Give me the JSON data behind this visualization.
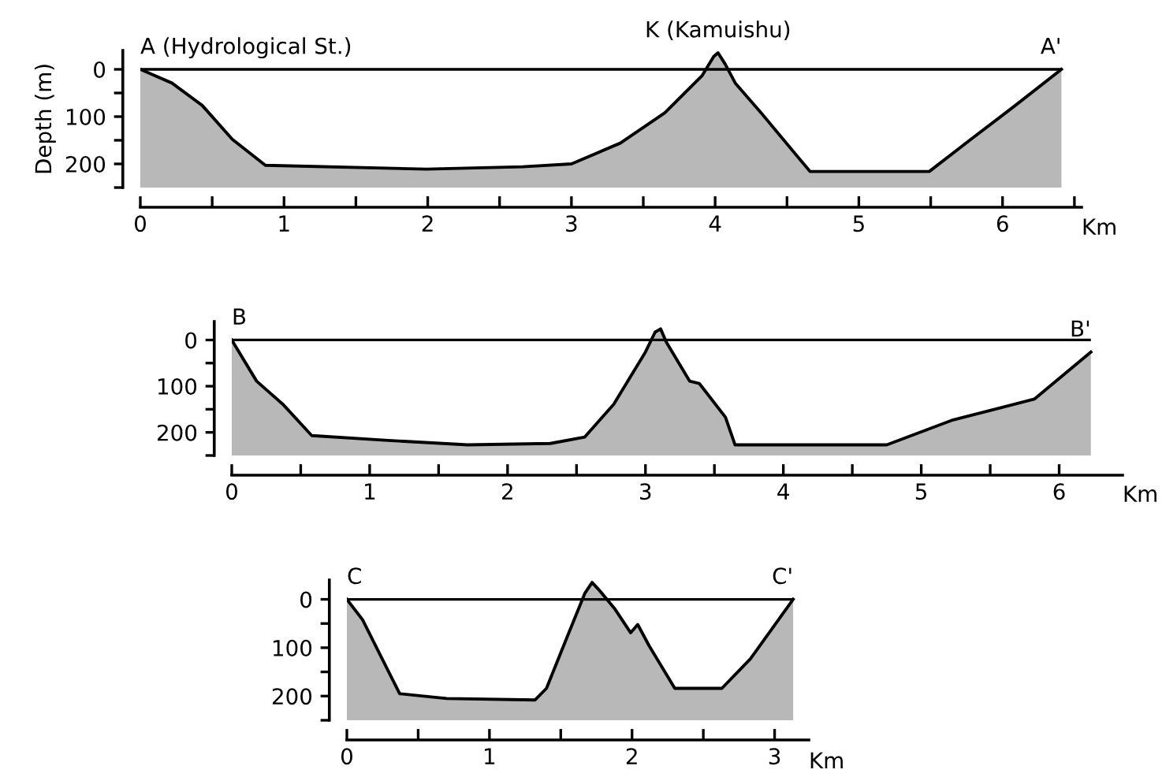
{
  "chart_data": [
    {
      "type": "line",
      "ylabel": "Depth (m)",
      "xlabel": "Km",
      "x": [
        0,
        0.22,
        0.43,
        0.64,
        0.87,
        1.99,
        2.66,
        3.0,
        3.34,
        3.65,
        3.91,
        3.99,
        4.02,
        4.07,
        4.14,
        4.32,
        4.66,
        5.49,
        5.78,
        6.09,
        6.41
      ],
      "series": [
        {
          "color": "#000000",
          "values": [
            0,
            29,
            76,
            148,
            203,
            211,
            206,
            200,
            156,
            92,
            13,
            -27,
            -35,
            -11,
            29,
            92,
            216,
            216,
            148,
            76,
            0
          ],
          "lower": [
            0,
            29,
            76,
            148,
            203,
            211,
            206,
            200,
            156,
            92,
            13,
            -27,
            -35,
            -11,
            29,
            92,
            216,
            216,
            148,
            76,
            0
          ],
          "upper": [
            250,
            250,
            250,
            250,
            250,
            250,
            250,
            250,
            250,
            250,
            250,
            250,
            250,
            250,
            250,
            250,
            250,
            250,
            250,
            250,
            250
          ]
        }
      ],
      "xlim": [
        0,
        6.55
      ],
      "ylim": [
        250,
        -40
      ],
      "xticks": [
        0,
        {
          "value": 0.5,
          "label": null
        },
        1,
        {
          "value": 1.5,
          "label": null
        },
        2,
        {
          "value": 2.5,
          "label": null
        },
        3,
        {
          "value": 3.5,
          "label": null
        },
        4,
        {
          "value": 4.5,
          "label": null
        },
        5,
        {
          "value": 5.5,
          "label": null
        },
        6,
        {
          "value": 6.5,
          "label": null
        }
      ],
      "yticks": [
        0,
        {
          "value": 50,
          "label": null
        },
        100,
        {
          "value": 150,
          "label": null
        },
        200,
        {
          "value": 250,
          "label": null
        }
      ],
      "ref_lines": [
        {
          "axis": "y",
          "value": 0
        }
      ],
      "annotations": [
        {
          "text": "A (Hydrological St.)",
          "x": 0,
          "y": 0
        },
        {
          "text": "K (Kamuishu)",
          "x": 4.02,
          "y": -35
        },
        {
          "text": "A'",
          "x": 6.41,
          "y": 0
        }
      ]
    },
    {
      "type": "line",
      "xlabel": "Km",
      "x": [
        0,
        0.18,
        0.37,
        0.58,
        1.11,
        1.71,
        2.31,
        2.56,
        2.77,
        3.0,
        3.07,
        3.11,
        3.15,
        3.32,
        3.39,
        3.58,
        3.65,
        4.75,
        5.22,
        5.82,
        6.23
      ],
      "series": [
        {
          "color": "#000000",
          "values": [
            0,
            89,
            139,
            207,
            217,
            227,
            224,
            210,
            139,
            26,
            -17,
            -24,
            4,
            89,
            94,
            167,
            227,
            227,
            174,
            128,
            26
          ],
          "lower": [
            0,
            89,
            139,
            207,
            217,
            227,
            224,
            210,
            139,
            26,
            -17,
            -24,
            4,
            89,
            94,
            167,
            227,
            227,
            174,
            128,
            26
          ],
          "upper": [
            250,
            250,
            250,
            250,
            250,
            250,
            250,
            250,
            250,
            250,
            250,
            250,
            250,
            250,
            250,
            250,
            250,
            250,
            250,
            250,
            250
          ]
        }
      ],
      "xlim": [
        0,
        6.46
      ],
      "ylim": [
        250,
        -40
      ],
      "xticks": [
        0,
        {
          "value": 0.5,
          "label": null
        },
        1,
        {
          "value": 1.5,
          "label": null
        },
        2,
        {
          "value": 2.5,
          "label": null
        },
        3,
        {
          "value": 3.5,
          "label": null
        },
        4,
        {
          "value": 4.5,
          "label": null
        },
        5,
        {
          "value": 5.5,
          "label": null
        },
        6
      ],
      "yticks": [
        0,
        {
          "value": 50,
          "label": null
        },
        100,
        {
          "value": 150,
          "label": null
        },
        200,
        {
          "value": 250,
          "label": null
        }
      ],
      "ref_lines": [
        {
          "axis": "y",
          "value": 0
        }
      ],
      "annotations": [
        {
          "text": "B",
          "x": 0,
          "y": 0
        },
        {
          "text": "B'",
          "x": 6.23,
          "y": 26
        }
      ]
    },
    {
      "type": "line",
      "xlabel": "Km",
      "x": [
        0,
        0.11,
        0.22,
        0.37,
        0.7,
        1.32,
        1.4,
        1.55,
        1.67,
        1.72,
        1.77,
        1.88,
        1.99,
        2.04,
        2.12,
        2.3,
        2.63,
        2.83,
        3.13
      ],
      "series": [
        {
          "color": "#000000",
          "values": [
            0,
            42,
            107,
            195,
            205,
            208,
            184,
            74,
            -13,
            -35,
            -19,
            20,
            69,
            52,
            96,
            184,
            184,
            123,
            0
          ],
          "lower": [
            0,
            42,
            107,
            195,
            205,
            208,
            184,
            74,
            -13,
            -35,
            -19,
            20,
            69,
            52,
            96,
            184,
            184,
            123,
            0
          ],
          "upper": [
            250,
            250,
            250,
            250,
            250,
            250,
            250,
            250,
            250,
            250,
            250,
            250,
            250,
            250,
            250,
            250,
            250,
            250,
            250
          ]
        }
      ],
      "xlim": [
        0,
        3.24
      ],
      "ylim": [
        250,
        -40
      ],
      "xticks": [
        0,
        {
          "value": 0.5,
          "label": null
        },
        1,
        {
          "value": 1.5,
          "label": null
        },
        2,
        {
          "value": 2.5,
          "label": null
        },
        3
      ],
      "yticks": [
        0,
        {
          "value": 50,
          "label": null
        },
        100,
        {
          "value": 150,
          "label": null
        },
        200,
        {
          "value": 250,
          "label": null
        }
      ],
      "ref_lines": [
        {
          "axis": "y",
          "value": 0
        }
      ],
      "annotations": [
        {
          "text": "C",
          "x": 0,
          "y": 0
        },
        {
          "text": "C'",
          "x": 3.13,
          "y": 0
        }
      ]
    }
  ]
}
